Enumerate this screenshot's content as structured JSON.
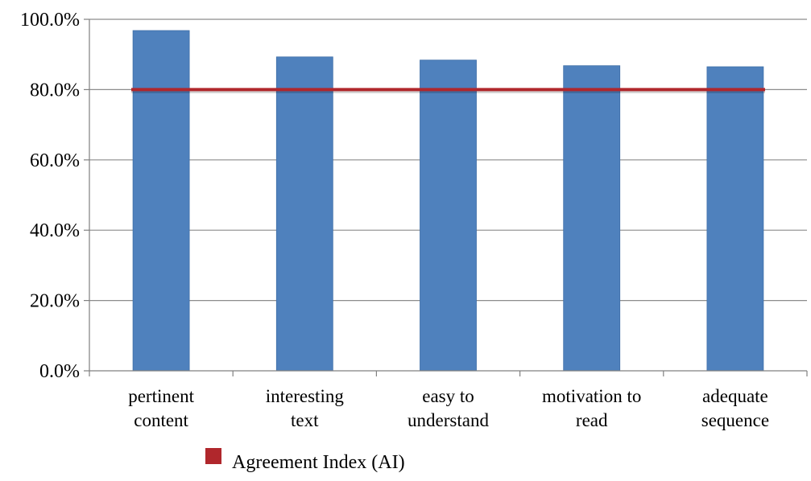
{
  "chart_data": {
    "type": "bar",
    "categories": [
      [
        "pertinent",
        "content"
      ],
      [
        "interesting",
        "text"
      ],
      [
        "easy to",
        "understand"
      ],
      [
        "motivation to",
        "read"
      ],
      [
        "adequate",
        "sequence"
      ]
    ],
    "values": [
      96.8,
      89.3,
      88.4,
      86.8,
      86.5
    ],
    "threshold": {
      "name": "Agreement Index (AI)",
      "value": 80.0,
      "color": "#b0272c"
    },
    "bar_color": "#4f81bd",
    "yticks": [
      "0.0%",
      "20.0%",
      "40.0%",
      "60.0%",
      "80.0%",
      "100.0%"
    ],
    "ylim": [
      0,
      100
    ],
    "grid": true,
    "legend": {
      "placement": "bottom-left",
      "entries": [
        "Agreement Index (AI)"
      ]
    }
  }
}
